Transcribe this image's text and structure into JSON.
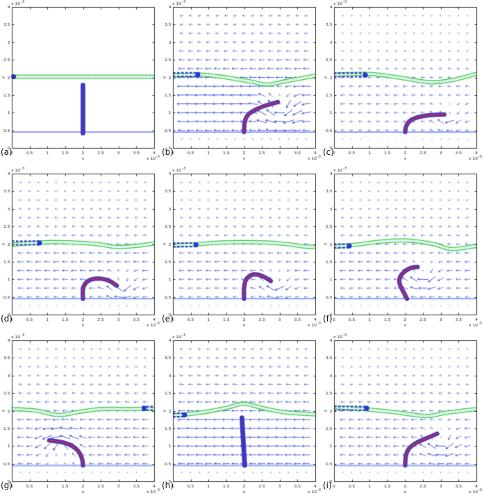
{
  "colors": {
    "background": "#ffffff",
    "axis": "#333333",
    "tick_text": "#222222",
    "membrane_green": "#3ecb46",
    "membrane_fill": "#f1faf3",
    "membrane_dashes": "#b5e3ee",
    "marked_segment_blue": "#2b35d4",
    "flagellum_outer": "#4038c0",
    "flagellum_core": "#bf2a50",
    "arrow_blue": "#3246d7",
    "floor_thin": "#4a6cf0",
    "floor_light": "#a4b4f4"
  },
  "chart_data": {
    "type": "quiver+line",
    "title": "",
    "xlabel": "x",
    "ylabel": "y",
    "xlim": [
      0,
      4
    ],
    "ylim": [
      0,
      4
    ],
    "grid": false,
    "ticks": [
      0,
      0.5,
      1,
      1.5,
      2,
      2.5,
      3,
      3.5,
      4
    ],
    "tick_labels": [
      "0",
      "0.5",
      "1",
      "1.5",
      "2",
      "2.5",
      "3",
      "3.5",
      "4"
    ],
    "exponent": {
      "text": "x 10",
      "sup": "-3"
    },
    "panels": [
      {
        "label": "(a)",
        "field": {
          "enabled": false,
          "strength": 0,
          "swirl": null
        },
        "membrane": {
          "points": [
            [
              0,
              2.02
            ],
            [
              4,
              2.02
            ]
          ]
        },
        "marked_segment": {
          "x0": 0,
          "x1": 0.12,
          "dot_x": 0.05,
          "y": 2.07
        },
        "flagellum": {
          "points": [
            [
              2.0,
              0.42
            ],
            [
              2.0,
              1.78
            ]
          ],
          "core": false
        },
        "floor": {
          "y": 0.45,
          "style": "thin"
        }
      },
      {
        "label": "(b)",
        "field": {
          "enabled": true,
          "strength": 1.0,
          "swirl": {
            "x": 3.0,
            "y": 1.1,
            "r": 0.85,
            "sign": 1
          }
        },
        "membrane": {
          "points": [
            [
              0,
              2.05
            ],
            [
              0.8,
              2.08
            ],
            [
              1.5,
              2.0
            ],
            [
              2.2,
              1.88
            ],
            [
              2.65,
              1.8
            ],
            [
              3.2,
              1.9
            ],
            [
              4,
              2.05
            ]
          ]
        },
        "marked_segment": {
          "x0": 0,
          "x1": 0.75,
          "dot_x": 0.7,
          "y": 2.13
        },
        "flagellum": {
          "points": [
            [
              2.0,
              0.45
            ],
            [
              2.02,
              0.75
            ],
            [
              2.12,
              0.95
            ],
            [
              2.35,
              1.1
            ],
            [
              2.6,
              1.2
            ],
            [
              2.95,
              1.3
            ]
          ],
          "core": true
        },
        "floor": {
          "y": 0.45,
          "style": "thin"
        }
      },
      {
        "label": "(c)",
        "field": {
          "enabled": true,
          "strength": 0.5,
          "swirl": {
            "x": 3.2,
            "y": 0.85,
            "r": 0.75,
            "sign": 1
          }
        },
        "membrane": {
          "points": [
            [
              0,
              2.08
            ],
            [
              1.0,
              2.1
            ],
            [
              1.8,
              2.0
            ],
            [
              2.4,
              1.9
            ],
            [
              2.75,
              1.86
            ],
            [
              3.3,
              1.92
            ],
            [
              4,
              2.1
            ]
          ]
        },
        "marked_segment": {
          "x0": 0,
          "x1": 0.9,
          "dot_x": 0.88,
          "y": 2.12
        },
        "flagellum": {
          "points": [
            [
              2.0,
              0.45
            ],
            [
              2.03,
              0.62
            ],
            [
              2.15,
              0.78
            ],
            [
              2.4,
              0.88
            ],
            [
              2.7,
              0.93
            ],
            [
              3.1,
              0.95
            ]
          ],
          "core": true
        },
        "floor": {
          "y": 0.45,
          "style": "thin"
        }
      },
      {
        "label": "(d)",
        "field": {
          "enabled": true,
          "strength": 0.65,
          "swirl": {
            "x": 3.1,
            "y": 0.8,
            "r": 0.75,
            "sign": 1
          }
        },
        "membrane": {
          "points": [
            [
              0,
              1.98
            ],
            [
              0.8,
              2.05
            ],
            [
              1.6,
              2.05
            ],
            [
              2.4,
              2.0
            ],
            [
              2.9,
              1.92
            ],
            [
              3.5,
              1.95
            ],
            [
              4,
              2.02
            ]
          ]
        },
        "marked_segment": {
          "x0": 0,
          "x1": 0.8,
          "dot_x": 0.78,
          "y": 2.08
        },
        "flagellum": {
          "points": [
            [
              2.0,
              0.45
            ],
            [
              2.0,
              0.72
            ],
            [
              2.08,
              0.9
            ],
            [
              2.25,
              1.0
            ],
            [
              2.5,
              1.02
            ],
            [
              2.75,
              0.95
            ],
            [
              2.95,
              0.82
            ]
          ],
          "core": true
        },
        "floor": {
          "y": 0.45,
          "style": "thin"
        }
      },
      {
        "label": "(e)",
        "field": {
          "enabled": true,
          "strength": 0.6,
          "swirl": {
            "x": 2.9,
            "y": 0.85,
            "r": 0.75,
            "sign": 1
          }
        },
        "membrane": {
          "points": [
            [
              0,
              1.95
            ],
            [
              0.7,
              2.0
            ],
            [
              1.5,
              2.05
            ],
            [
              2.5,
              2.05
            ],
            [
              3.2,
              2.0
            ],
            [
              3.7,
              1.93
            ],
            [
              4,
              1.92
            ]
          ]
        },
        "marked_segment": {
          "x0": 0,
          "x1": 0.68,
          "dot_x": 0.65,
          "y": 2.03
        },
        "flagellum": {
          "points": [
            [
              2.0,
              0.45
            ],
            [
              2.0,
              0.75
            ],
            [
              2.05,
              0.98
            ],
            [
              2.2,
              1.12
            ],
            [
              2.4,
              1.13
            ],
            [
              2.6,
              1.05
            ],
            [
              2.75,
              0.95
            ]
          ],
          "core": true
        },
        "floor": {
          "y": 0.45,
          "style": "thin"
        }
      },
      {
        "label": "(f)",
        "field": {
          "enabled": true,
          "strength": 0.6,
          "swirl": {
            "x": 2.5,
            "y": 1.1,
            "r": 0.8,
            "sign": 1
          }
        },
        "membrane": {
          "points": [
            [
              0,
              1.92
            ],
            [
              0.6,
              1.98
            ],
            [
              1.4,
              2.08
            ],
            [
              2.1,
              2.1
            ],
            [
              2.8,
              2.0
            ],
            [
              3.3,
              1.86
            ],
            [
              4,
              1.95
            ]
          ]
        },
        "marked_segment": {
          "x0": 0,
          "x1": 0.45,
          "dot_x": 0.43,
          "y": 2.0
        },
        "flagellum": {
          "points": [
            [
              2.05,
              0.45
            ],
            [
              1.95,
              0.65
            ],
            [
              1.85,
              0.85
            ],
            [
              1.85,
              1.05
            ],
            [
              1.98,
              1.22
            ],
            [
              2.15,
              1.32
            ],
            [
              2.35,
              1.35
            ]
          ],
          "core": true
        },
        "floor": {
          "y": 0.45,
          "style": "thin"
        }
      },
      {
        "label": "(g)",
        "field": {
          "enabled": true,
          "strength": 0.7,
          "swirl": {
            "x": 1.35,
            "y": 1.0,
            "r": 0.9,
            "sign": -1
          }
        },
        "membrane": {
          "points": [
            [
              0,
              2.05
            ],
            [
              0.7,
              2.0
            ],
            [
              1.3,
              1.88
            ],
            [
              1.9,
              1.97
            ],
            [
              2.5,
              2.05
            ],
            [
              3.2,
              2.05
            ],
            [
              4,
              2.05
            ]
          ]
        },
        "marked_segment": {
          "x0": 3.66,
          "x1": 4.0,
          "dot_x": 3.72,
          "y": 2.12
        },
        "flagellum": {
          "points": [
            [
              2.0,
              0.45
            ],
            [
              1.97,
              0.65
            ],
            [
              1.87,
              0.85
            ],
            [
              1.7,
              1.0
            ],
            [
              1.45,
              1.1
            ],
            [
              1.05,
              1.16
            ]
          ],
          "core": true
        },
        "floor": {
          "y": 0.45,
          "style": "light"
        }
      },
      {
        "label": "(h)",
        "field": {
          "enabled": true,
          "strength": 0.95,
          "swirl": null
        },
        "membrane": {
          "points": [
            [
              0,
              1.86
            ],
            [
              0.8,
              1.95
            ],
            [
              1.5,
              2.08
            ],
            [
              2.0,
              2.2
            ],
            [
              2.5,
              2.08
            ],
            [
              3.2,
              1.95
            ],
            [
              4,
              1.9
            ]
          ]
        },
        "marked_segment": {
          "x0": 0,
          "x1": 0.35,
          "dot_x": 0.33,
          "y": 1.93
        },
        "flagellum": {
          "points": [
            [
              2.02,
              0.45
            ],
            [
              1.98,
              1.1
            ],
            [
              1.94,
              1.8
            ]
          ],
          "core": false
        },
        "floor": {
          "y": 0.45,
          "style": "light"
        }
      },
      {
        "label": "(i)",
        "field": {
          "enabled": true,
          "strength": 0.65,
          "swirl": {
            "x": 3.0,
            "y": 1.1,
            "r": 0.85,
            "sign": 1
          }
        },
        "membrane": {
          "points": [
            [
              0,
              2.1
            ],
            [
              0.8,
              2.05
            ],
            [
              1.6,
              1.97
            ],
            [
              2.3,
              1.88
            ],
            [
              2.65,
              1.85
            ],
            [
              3.2,
              1.95
            ],
            [
              4,
              2.05
            ]
          ]
        },
        "marked_segment": {
          "x0": 0,
          "x1": 0.95,
          "dot_x": 0.92,
          "y": 2.12
        },
        "flagellum": {
          "points": [
            [
              2.0,
              0.45
            ],
            [
              2.02,
              0.72
            ],
            [
              2.1,
              0.92
            ],
            [
              2.3,
              1.08
            ],
            [
              2.6,
              1.22
            ],
            [
              2.9,
              1.35
            ]
          ],
          "core": true
        },
        "floor": {
          "y": 0.45,
          "style": "light"
        }
      }
    ]
  }
}
